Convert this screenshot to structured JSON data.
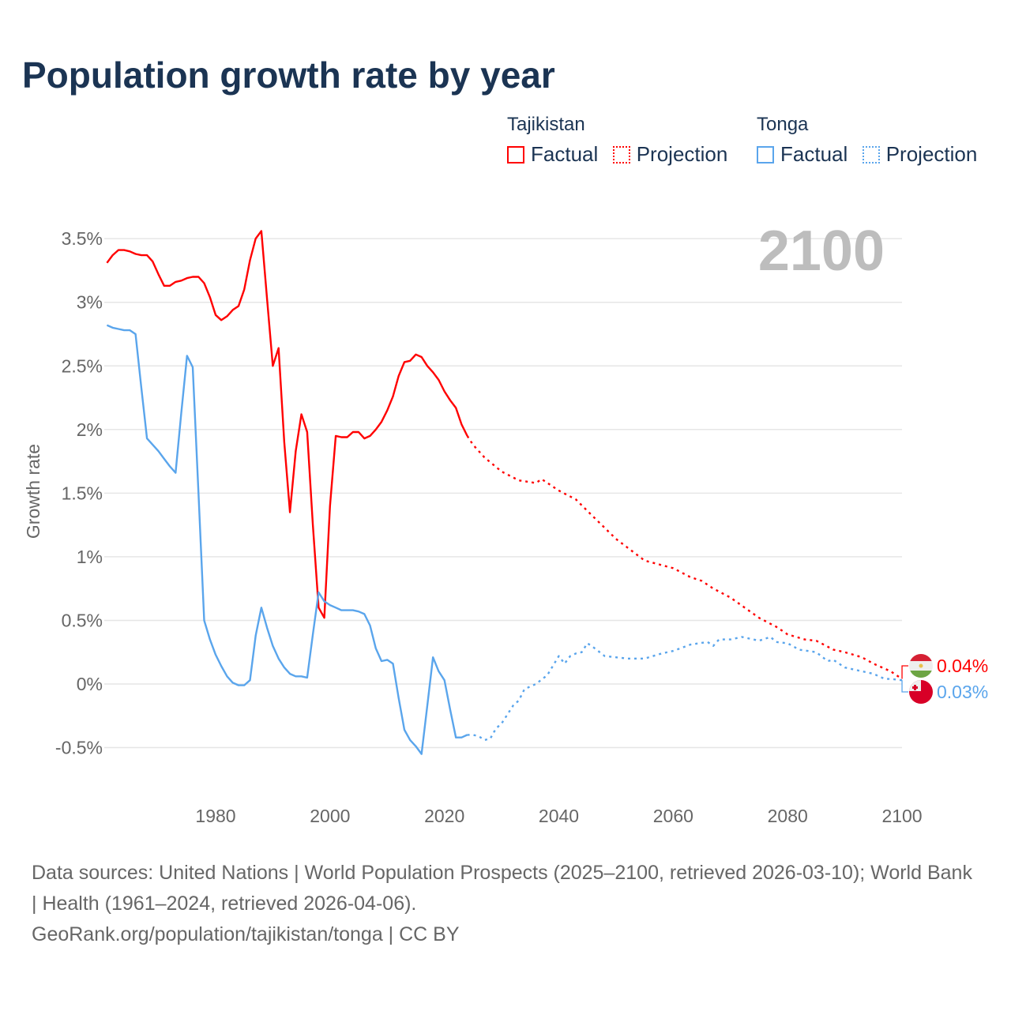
{
  "chart_data": {
    "type": "line",
    "title": "Population growth rate by year",
    "ylabel": "Growth rate",
    "xlabel": "",
    "xlim": [
      1961,
      2100
    ],
    "ylim": [
      -0.75,
      3.75
    ],
    "x_ticks": [
      1980,
      2000,
      2020,
      2040,
      2060,
      2080,
      2100
    ],
    "y_ticks": [
      -0.5,
      0,
      0.5,
      1,
      1.5,
      2,
      2.5,
      3,
      3.5
    ],
    "y_tick_labels": [
      "-0.5%",
      "0%",
      "0.5%",
      "1%",
      "1.5%",
      "2%",
      "2.5%",
      "3%",
      "3.5%"
    ],
    "x_tick_labels": [
      "1980",
      "2000",
      "2020",
      "2040",
      "2060",
      "2080",
      "2100"
    ],
    "grid": true,
    "year_watermark": "2100",
    "legend_placement": "top-right",
    "series": [
      {
        "name": "Tajikistan",
        "color": "#ff0000",
        "end_label": "0.04%",
        "factual": {
          "label": "Factual",
          "x": [
            1961,
            1962,
            1963,
            1964,
            1965,
            1966,
            1967,
            1968,
            1969,
            1970,
            1971,
            1972,
            1973,
            1974,
            1975,
            1976,
            1977,
            1978,
            1979,
            1980,
            1981,
            1982,
            1983,
            1984,
            1985,
            1986,
            1987,
            1988,
            1989,
            1990,
            1991,
            1992,
            1993,
            1994,
            1995,
            1996,
            1997,
            1998,
            1999,
            2000,
            2001,
            2002,
            2003,
            2004,
            2005,
            2006,
            2007,
            2008,
            2009,
            2010,
            2011,
            2012,
            2013,
            2014,
            2015,
            2016,
            2017,
            2018,
            2019,
            2020,
            2021,
            2022,
            2023,
            2024
          ],
          "y": [
            3.31,
            3.37,
            3.41,
            3.41,
            3.4,
            3.38,
            3.37,
            3.37,
            3.32,
            3.22,
            3.13,
            3.13,
            3.16,
            3.17,
            3.19,
            3.2,
            3.2,
            3.15,
            3.04,
            2.9,
            2.86,
            2.89,
            2.94,
            2.97,
            3.1,
            3.33,
            3.5,
            3.56,
            3.02,
            2.5,
            2.64,
            1.9,
            1.35,
            1.83,
            2.12,
            1.98,
            1.25,
            0.6,
            0.52,
            1.4,
            1.95,
            1.94,
            1.94,
            1.98,
            1.98,
            1.93,
            1.95,
            2.0,
            2.06,
            2.15,
            2.26,
            2.42,
            2.53,
            2.54,
            2.59,
            2.57,
            2.5,
            2.45,
            2.39,
            2.3,
            2.23,
            2.17,
            2.04,
            1.95
          ]
        },
        "projection": {
          "label": "Projection",
          "x": [
            2024,
            2025,
            2027,
            2030,
            2033,
            2036,
            2037,
            2040,
            2043,
            2045,
            2050,
            2055,
            2060,
            2063,
            2065,
            2067,
            2070,
            2075,
            2078,
            2080,
            2083,
            2085,
            2088,
            2090,
            2093,
            2095,
            2098,
            2100
          ],
          "y": [
            1.95,
            1.88,
            1.78,
            1.67,
            1.6,
            1.58,
            1.61,
            1.52,
            1.45,
            1.36,
            1.14,
            0.97,
            0.91,
            0.84,
            0.81,
            0.75,
            0.68,
            0.52,
            0.45,
            0.39,
            0.35,
            0.34,
            0.27,
            0.25,
            0.21,
            0.16,
            0.1,
            0.04
          ]
        }
      },
      {
        "name": "Tonga",
        "color": "#5aa5ec",
        "end_label": "0.03%",
        "factual": {
          "label": "Factual",
          "x": [
            1961,
            1962,
            1963,
            1964,
            1965,
            1966,
            1967,
            1968,
            1969,
            1970,
            1971,
            1972,
            1973,
            1974,
            1975,
            1976,
            1977,
            1978,
            1979,
            1980,
            1981,
            1982,
            1983,
            1984,
            1985,
            1986,
            1987,
            1988,
            1989,
            1990,
            1991,
            1992,
            1993,
            1994,
            1995,
            1996,
            1997,
            1998,
            1999,
            2000,
            2001,
            2002,
            2003,
            2004,
            2005,
            2006,
            2007,
            2008,
            2009,
            2010,
            2011,
            2012,
            2013,
            2014,
            2015,
            2016,
            2017,
            2018,
            2019,
            2020,
            2021,
            2022,
            2023,
            2024
          ],
          "y": [
            2.82,
            2.8,
            2.79,
            2.78,
            2.78,
            2.75,
            2.33,
            1.93,
            1.88,
            1.83,
            1.77,
            1.71,
            1.66,
            2.13,
            2.58,
            2.49,
            1.5,
            0.5,
            0.35,
            0.23,
            0.14,
            0.06,
            0.01,
            -0.01,
            -0.01,
            0.03,
            0.38,
            0.6,
            0.44,
            0.3,
            0.2,
            0.13,
            0.08,
            0.06,
            0.06,
            0.05,
            0.39,
            0.72,
            0.65,
            0.62,
            0.6,
            0.58,
            0.58,
            0.58,
            0.57,
            0.55,
            0.46,
            0.28,
            0.18,
            0.19,
            0.16,
            -0.11,
            -0.36,
            -0.44,
            -0.49,
            -0.55,
            -0.17,
            0.21,
            0.1,
            0.03,
            -0.2,
            -0.42,
            -0.42,
            -0.4
          ]
        },
        "projection": {
          "label": "Projection",
          "x": [
            2024,
            2025,
            2026,
            2027,
            2028,
            2029,
            2030,
            2032,
            2033,
            2034,
            2036,
            2038,
            2040,
            2041,
            2042,
            2043,
            2044,
            2045,
            2046,
            2048,
            2050,
            2052,
            2055,
            2058,
            2060,
            2063,
            2066,
            2067,
            2068,
            2070,
            2072,
            2075,
            2077,
            2078,
            2080,
            2082,
            2085,
            2087,
            2088,
            2090,
            2093,
            2095,
            2097,
            2098,
            2100
          ],
          "y": [
            -0.4,
            -0.4,
            -0.41,
            -0.44,
            -0.43,
            -0.35,
            -0.31,
            -0.17,
            -0.13,
            -0.04,
            0.0,
            0.07,
            0.22,
            0.16,
            0.22,
            0.24,
            0.25,
            0.32,
            0.29,
            0.22,
            0.21,
            0.2,
            0.2,
            0.24,
            0.26,
            0.31,
            0.33,
            0.3,
            0.35,
            0.35,
            0.37,
            0.34,
            0.37,
            0.33,
            0.32,
            0.27,
            0.25,
            0.18,
            0.19,
            0.13,
            0.1,
            0.08,
            0.04,
            0.04,
            0.03
          ]
        }
      }
    ]
  },
  "footer": {
    "sources": "Data sources: United Nations | World Population Prospects (2025–2100, retrieved 2026-03-10); World Bank | Health (1961–2024, retrieved 2026-04-06).",
    "credit": "GeoRank.org/population/tajikistan/tonga | CC BY"
  }
}
